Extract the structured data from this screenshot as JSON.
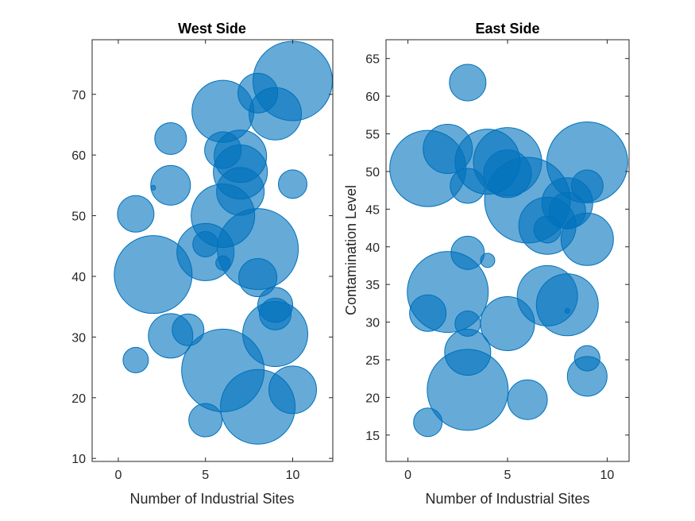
{
  "colors": {
    "bubble_fill": "#0072BD",
    "bubble_opacity": 0.6,
    "axis": "#262626"
  },
  "chart_data": [
    {
      "type": "scatter",
      "title": "West Side",
      "xlabel": "Number of Industrial Sites",
      "ylabel": "",
      "xlim": [
        -1.5,
        12.3
      ],
      "ylim": [
        9.5,
        79
      ],
      "xticks": [
        0,
        5,
        10
      ],
      "yticks": [
        10,
        20,
        30,
        40,
        50,
        60,
        70
      ],
      "grid": false,
      "points": [
        {
          "x": 1,
          "y": 26.2,
          "size": 16
        },
        {
          "x": 1,
          "y": 50.3,
          "size": 23
        },
        {
          "x": 2,
          "y": 40.3,
          "size": 49
        },
        {
          "x": 2,
          "y": 54.6,
          "size": 3
        },
        {
          "x": 3,
          "y": 62.7,
          "size": 20
        },
        {
          "x": 3,
          "y": 55.0,
          "size": 25
        },
        {
          "x": 3,
          "y": 30.2,
          "size": 28
        },
        {
          "x": 4,
          "y": 31.2,
          "size": 20
        },
        {
          "x": 5,
          "y": 16.3,
          "size": 21
        },
        {
          "x": 5,
          "y": 44.0,
          "size": 36
        },
        {
          "x": 5,
          "y": 45.3,
          "size": 16
        },
        {
          "x": 6,
          "y": 67.2,
          "size": 39
        },
        {
          "x": 6,
          "y": 60.8,
          "size": 23
        },
        {
          "x": 6,
          "y": 50.0,
          "size": 40
        },
        {
          "x": 6,
          "y": 42.2,
          "size": 9
        },
        {
          "x": 6,
          "y": 24.5,
          "size": 52
        },
        {
          "x": 7,
          "y": 59.8,
          "size": 33
        },
        {
          "x": 7,
          "y": 57.2,
          "size": 34
        },
        {
          "x": 7,
          "y": 54.0,
          "size": 30
        },
        {
          "x": 8,
          "y": 70.2,
          "size": 25
        },
        {
          "x": 8,
          "y": 44.5,
          "size": 51
        },
        {
          "x": 8,
          "y": 39.8,
          "size": 24
        },
        {
          "x": 8,
          "y": 18.5,
          "size": 47
        },
        {
          "x": 9,
          "y": 66.8,
          "size": 33
        },
        {
          "x": 9,
          "y": 35.3,
          "size": 22
        },
        {
          "x": 9,
          "y": 33.8,
          "size": 20
        },
        {
          "x": 9,
          "y": 30.5,
          "size": 41
        },
        {
          "x": 10,
          "y": 72.2,
          "size": 50
        },
        {
          "x": 10,
          "y": 55.2,
          "size": 18
        },
        {
          "x": 10,
          "y": 21.3,
          "size": 30
        }
      ]
    },
    {
      "type": "scatter",
      "title": "East Side",
      "xlabel": "Number of Industrial Sites",
      "ylabel": "Contamination Level",
      "xlim": [
        -1.1,
        11.1
      ],
      "ylim": [
        11.5,
        67.5
      ],
      "xticks": [
        0,
        5,
        10
      ],
      "yticks": [
        15,
        20,
        25,
        30,
        35,
        40,
        45,
        50,
        55,
        60,
        65
      ],
      "grid": false,
      "points": [
        {
          "x": 1,
          "y": 50.4,
          "size": 48
        },
        {
          "x": 1,
          "y": 31.2,
          "size": 23
        },
        {
          "x": 1,
          "y": 16.7,
          "size": 18
        },
        {
          "x": 2,
          "y": 53.0,
          "size": 31
        },
        {
          "x": 2,
          "y": 34.0,
          "size": 51
        },
        {
          "x": 3,
          "y": 61.8,
          "size": 23
        },
        {
          "x": 3,
          "y": 48.1,
          "size": 22
        },
        {
          "x": 3,
          "y": 39.2,
          "size": 21
        },
        {
          "x": 3,
          "y": 29.8,
          "size": 16
        },
        {
          "x": 3,
          "y": 26.0,
          "size": 29
        },
        {
          "x": 3,
          "y": 21.0,
          "size": 51
        },
        {
          "x": 4,
          "y": 51.3,
          "size": 41
        },
        {
          "x": 4,
          "y": 38.2,
          "size": 9
        },
        {
          "x": 5,
          "y": 51.3,
          "size": 43
        },
        {
          "x": 5,
          "y": 49.7,
          "size": 30
        },
        {
          "x": 5,
          "y": 29.8,
          "size": 34
        },
        {
          "x": 6,
          "y": 46.2,
          "size": 54
        },
        {
          "x": 6,
          "y": 19.7,
          "size": 25
        },
        {
          "x": 7,
          "y": 42.8,
          "size": 36
        },
        {
          "x": 7,
          "y": 42.3,
          "size": 17
        },
        {
          "x": 7,
          "y": 33.5,
          "size": 38
        },
        {
          "x": 8,
          "y": 45.8,
          "size": 32
        },
        {
          "x": 8,
          "y": 44.8,
          "size": 23
        },
        {
          "x": 8,
          "y": 32.3,
          "size": 39
        },
        {
          "x": 8,
          "y": 31.5,
          "size": 3
        },
        {
          "x": 9,
          "y": 51.2,
          "size": 51
        },
        {
          "x": 9,
          "y": 48.1,
          "size": 20
        },
        {
          "x": 9,
          "y": 41.0,
          "size": 33
        },
        {
          "x": 9,
          "y": 25.2,
          "size": 16
        },
        {
          "x": 9,
          "y": 22.8,
          "size": 25
        }
      ]
    }
  ]
}
